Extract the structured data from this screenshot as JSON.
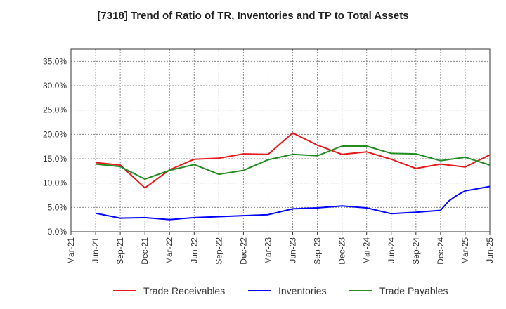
{
  "chart_data": {
    "type": "line",
    "title": "[7318]  Trend of Ratio of TR, Inventories and TP to Total Assets",
    "xlabel": "",
    "ylabel": "",
    "categories": [
      "Mar-21",
      "Jun-21",
      "Sep-21",
      "Dec-21",
      "Mar-22",
      "Jun-22",
      "Sep-22",
      "Dec-22",
      "Mar-23",
      "Jun-23",
      "Sep-23",
      "Dec-23",
      "Mar-24",
      "Jun-24",
      "Sep-24",
      "Dec-24",
      "Mar-25",
      "Jun-25"
    ],
    "ylim": [
      0,
      37.5
    ],
    "yticks": [
      0,
      5,
      10,
      15,
      20,
      25,
      30,
      35
    ],
    "ytick_labels": [
      "0.0%",
      "5.0%",
      "10.0%",
      "15.0%",
      "20.0%",
      "25.0%",
      "30.0%",
      "35.0%"
    ],
    "grid": true,
    "legend_position": "bottom",
    "series": [
      {
        "name": "Trade Receivables",
        "color": "#e41a1c",
        "points": [
          [
            1,
            14.2
          ],
          [
            2,
            13.7
          ],
          [
            3,
            9.0
          ],
          [
            4,
            12.7
          ],
          [
            5,
            14.9
          ],
          [
            6,
            15.1
          ],
          [
            7,
            16.0
          ],
          [
            8,
            15.9
          ],
          [
            9,
            20.3
          ],
          [
            10,
            17.8
          ],
          [
            11,
            15.9
          ],
          [
            12,
            16.4
          ],
          [
            13,
            14.9
          ],
          [
            14,
            13.0
          ],
          [
            15,
            13.9
          ],
          [
            16,
            13.3
          ],
          [
            17,
            15.8
          ]
        ]
      },
      {
        "name": "Inventories",
        "color": "#0000ff",
        "points": [
          [
            1,
            3.8
          ],
          [
            2,
            2.8
          ],
          [
            3,
            2.9
          ],
          [
            4,
            2.5
          ],
          [
            5,
            2.9
          ],
          [
            6,
            3.1
          ],
          [
            7,
            3.3
          ],
          [
            8,
            3.5
          ],
          [
            9,
            4.7
          ],
          [
            10,
            4.9
          ],
          [
            11,
            5.3
          ],
          [
            12,
            4.9
          ],
          [
            13,
            3.7
          ],
          [
            14,
            4.0
          ],
          [
            15,
            4.4
          ],
          [
            15.33,
            6.3
          ],
          [
            15.67,
            7.5
          ],
          [
            16,
            8.4
          ],
          [
            17,
            9.3
          ]
        ]
      },
      {
        "name": "Trade Payables",
        "color": "#228b22",
        "points": [
          [
            1,
            13.9
          ],
          [
            2,
            13.4
          ],
          [
            3,
            10.8
          ],
          [
            4,
            12.6
          ],
          [
            5,
            13.8
          ],
          [
            6,
            11.8
          ],
          [
            7,
            12.6
          ],
          [
            8,
            14.8
          ],
          [
            9,
            15.9
          ],
          [
            10,
            15.6
          ],
          [
            11,
            17.6
          ],
          [
            12,
            17.6
          ],
          [
            13,
            16.1
          ],
          [
            14,
            16.0
          ],
          [
            15,
            14.6
          ],
          [
            16,
            15.3
          ],
          [
            17,
            13.7
          ]
        ]
      }
    ]
  }
}
